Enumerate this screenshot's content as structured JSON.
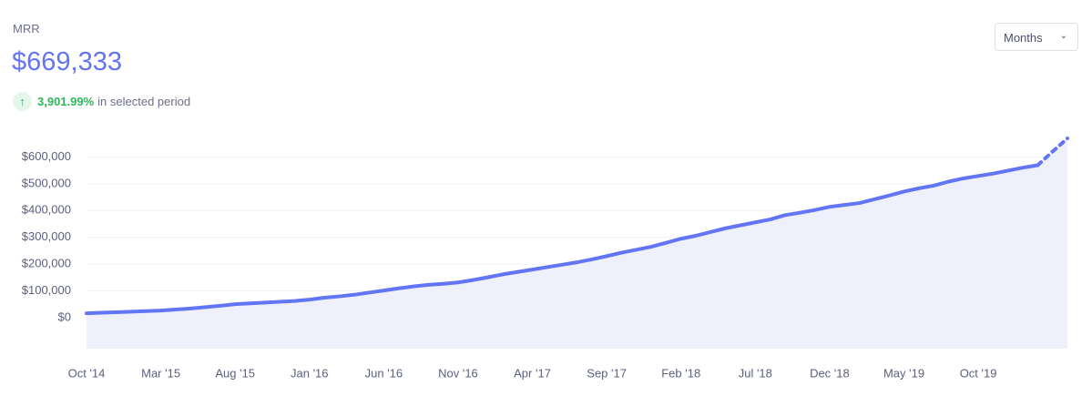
{
  "header": {
    "label": "MRR",
    "value": "$669,333",
    "change": "3,901.99%",
    "change_text": "in selected period"
  },
  "controls": {
    "period": "Months"
  },
  "chart_data": {
    "type": "line",
    "categories": [
      "Oct '14",
      null,
      null,
      null,
      null,
      "Mar '15",
      null,
      null,
      null,
      null,
      "Aug '15",
      null,
      null,
      null,
      null,
      "Jan '16",
      null,
      null,
      null,
      null,
      "Jun '16",
      null,
      null,
      null,
      null,
      "Nov '16",
      null,
      null,
      null,
      null,
      "Apr '17",
      null,
      null,
      null,
      null,
      "Sep '17",
      null,
      null,
      null,
      null,
      "Feb '18",
      null,
      null,
      null,
      null,
      "Jul '18",
      null,
      null,
      null,
      null,
      "Dec '18",
      null,
      null,
      null,
      null,
      "May '19",
      null,
      null,
      null,
      null,
      "Oct '19",
      null,
      null,
      null,
      null,
      null,
      null
    ],
    "values": [
      17000,
      19000,
      21000,
      23000,
      25000,
      27000,
      31000,
      35000,
      40000,
      45000,
      51000,
      54000,
      57000,
      60000,
      63000,
      68000,
      75000,
      80000,
      86000,
      94000,
      102000,
      110000,
      117000,
      123000,
      127000,
      132000,
      141000,
      151000,
      162000,
      171000,
      180000,
      189000,
      198000,
      207000,
      218000,
      230000,
      243000,
      254000,
      265000,
      280000,
      295000,
      306000,
      320000,
      334000,
      345000,
      356000,
      367000,
      383000,
      392000,
      402000,
      414000,
      421000,
      428000,
      442000,
      456000,
      471000,
      483000,
      493000,
      508000,
      520000,
      529000,
      538000,
      549000,
      560000,
      569000,
      620000,
      669333
    ],
    "dashed_from": 64,
    "color": "#6275f4",
    "area_color": "#eef0fc",
    "ylim": [
      -115000,
      710000
    ],
    "yticks": [
      {
        "value": 0,
        "label": "$0"
      },
      {
        "value": 100000,
        "label": "$100,000"
      },
      {
        "value": 200000,
        "label": "$200,000"
      },
      {
        "value": 300000,
        "label": "$300,000"
      },
      {
        "value": 400000,
        "label": "$400,000"
      },
      {
        "value": 500000,
        "label": "$500,000"
      },
      {
        "value": 600000,
        "label": "$600,000"
      }
    ],
    "grid": true
  }
}
